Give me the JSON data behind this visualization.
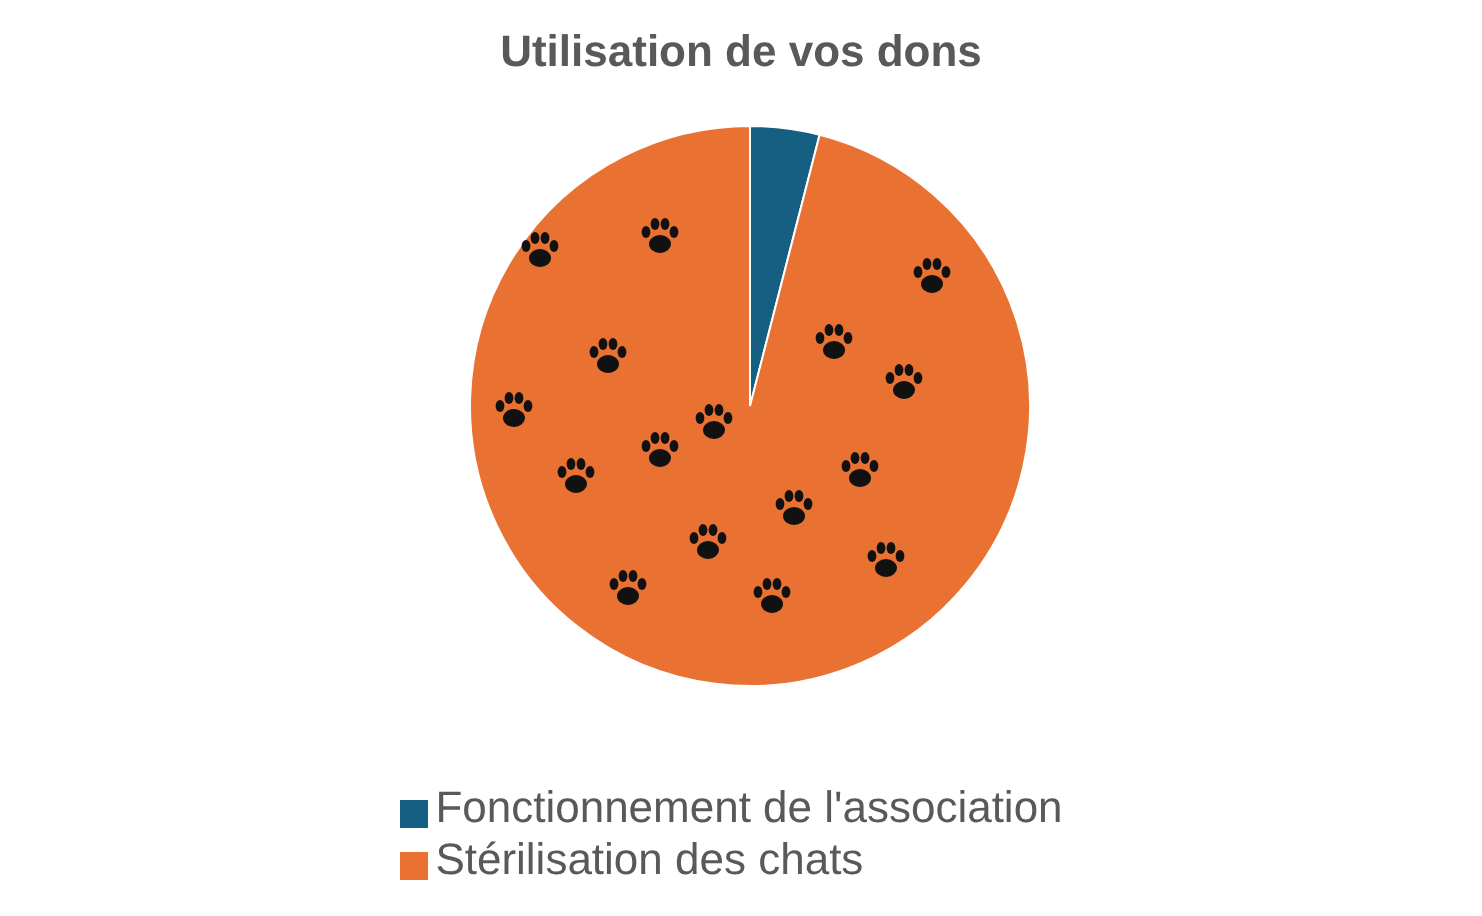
{
  "chart_data": {
    "type": "pie",
    "title": "Utilisation de vos dons",
    "categories": [
      "Fonctionnement de l'association",
      "Stérilisation des chats"
    ],
    "values": [
      4,
      96
    ],
    "colors": [
      "#156082",
      "#e97132"
    ],
    "legend": "bottom"
  }
}
